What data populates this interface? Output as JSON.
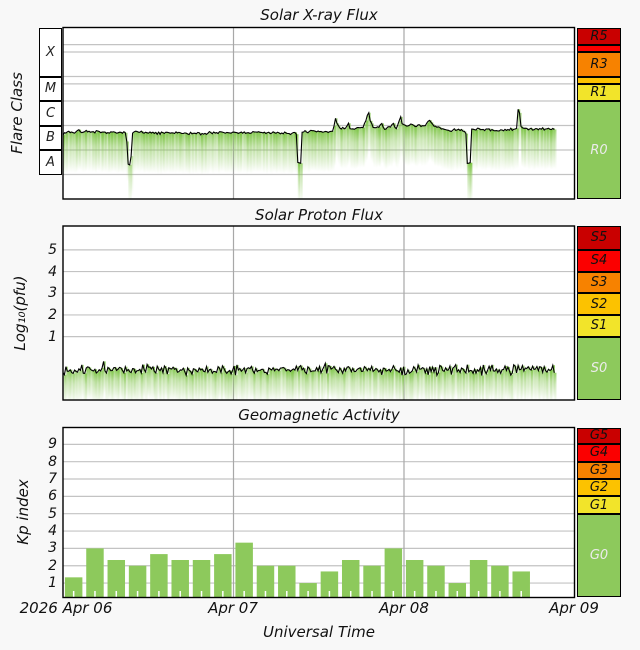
{
  "app": {
    "x_axis_label": "Universal Time",
    "x_tick_labels": [
      "2026 Apr 06",
      "Apr 07",
      "Apr 08",
      "Apr 09"
    ],
    "background": "#f8f8f8"
  },
  "colors": {
    "green": "#8dc95c",
    "level1": "#f2e42a",
    "level2": "#fcc200",
    "level3": "#f78200",
    "level4": "#fb0000",
    "level5": "#c90000",
    "label_light": "#ebebeb",
    "label_dark": "#111111",
    "grid": "#c3c3c3",
    "dayline": "#a8a8a8",
    "plot_bg": "#ffffff",
    "line": "#000000"
  },
  "chart_data": [
    {
      "type": "area",
      "title": "Solar X-ray Flux",
      "ylabel": "Flare Class",
      "y_axis": "log10 flux, decades from -9 (bottom) to -2 (top)",
      "ylim": [
        -9,
        -2
      ],
      "x_range_days": 3,
      "class_boxes": [
        {
          "label": "X",
          "from": -4,
          "to": -2
        },
        {
          "label": "M",
          "from": -5,
          "to": -4
        },
        {
          "label": "C",
          "from": -6,
          "to": -5
        },
        {
          "label": "B",
          "from": -7,
          "to": -6
        },
        {
          "label": "A",
          "from": -8,
          "to": -7
        }
      ],
      "grid_levels": [
        -2.7,
        -3,
        -4,
        -4.3,
        -5,
        -6,
        -7,
        -8
      ],
      "series": [
        {
          "name": "xray_flux_log10",
          "noise": 0.035,
          "end_t": 2.888,
          "points": [
            [
              0,
              -6.33
            ],
            [
              0.03,
              -6.25
            ],
            [
              0.06,
              -6.3
            ],
            [
              0.09,
              -6.2
            ],
            [
              0.11,
              -6.28
            ],
            [
              0.14,
              -6.22
            ],
            [
              0.17,
              -6.3
            ],
            [
              0.2,
              -6.26
            ],
            [
              0.24,
              -6.3
            ],
            [
              0.28,
              -6.28
            ],
            [
              0.32,
              -6.3
            ],
            [
              0.36,
              -6.3
            ],
            [
              0.372,
              -6.3
            ],
            [
              0.38,
              -7.55
            ],
            [
              0.398,
              -7.55
            ],
            [
              0.406,
              -6.28
            ],
            [
              0.44,
              -6.26
            ],
            [
              0.5,
              -6.3
            ],
            [
              0.56,
              -6.32
            ],
            [
              0.62,
              -6.3
            ],
            [
              0.68,
              -6.32
            ],
            [
              0.74,
              -6.31
            ],
            [
              0.8,
              -6.33
            ],
            [
              0.86,
              -6.31
            ],
            [
              0.92,
              -6.3
            ],
            [
              0.98,
              -6.29
            ],
            [
              1.04,
              -6.3
            ],
            [
              1.1,
              -6.28
            ],
            [
              1.16,
              -6.3
            ],
            [
              1.22,
              -6.29
            ],
            [
              1.28,
              -6.3
            ],
            [
              1.34,
              -6.3
            ],
            [
              1.368,
              -6.3
            ],
            [
              1.376,
              -7.55
            ],
            [
              1.394,
              -7.55
            ],
            [
              1.402,
              -6.26
            ],
            [
              1.44,
              -6.23
            ],
            [
              1.5,
              -6.26
            ],
            [
              1.55,
              -6.28
            ],
            [
              1.585,
              -6.22
            ],
            [
              1.597,
              -5.68
            ],
            [
              1.607,
              -5.92
            ],
            [
              1.625,
              -6.12
            ],
            [
              1.655,
              -6.12
            ],
            [
              1.672,
              -5.9
            ],
            [
              1.684,
              -6.14
            ],
            [
              1.72,
              -6.12
            ],
            [
              1.76,
              -6.08
            ],
            [
              1.783,
              -5.7
            ],
            [
              1.79,
              -5.26
            ],
            [
              1.798,
              -5.75
            ],
            [
              1.815,
              -6.05
            ],
            [
              1.85,
              -6.1
            ],
            [
              1.868,
              -5.95
            ],
            [
              1.885,
              -6.1
            ],
            [
              1.92,
              -6.06
            ],
            [
              1.938,
              -5.97
            ],
            [
              1.955,
              -6.1
            ],
            [
              1.982,
              -5.68
            ],
            [
              1.995,
              -6.02
            ],
            [
              2.03,
              -5.96
            ],
            [
              2.06,
              -6.02
            ],
            [
              2.09,
              -5.96
            ],
            [
              2.12,
              -6.04
            ],
            [
              2.148,
              -5.78
            ],
            [
              2.17,
              -6.0
            ],
            [
              2.21,
              -6.1
            ],
            [
              2.26,
              -6.2
            ],
            [
              2.31,
              -6.18
            ],
            [
              2.35,
              -6.2
            ],
            [
              2.362,
              -6.2
            ],
            [
              2.37,
              -7.55
            ],
            [
              2.388,
              -7.55
            ],
            [
              2.396,
              -6.18
            ],
            [
              2.44,
              -6.16
            ],
            [
              2.5,
              -6.18
            ],
            [
              2.56,
              -6.2
            ],
            [
              2.62,
              -6.18
            ],
            [
              2.66,
              -6.14
            ],
            [
              2.672,
              -5.06
            ],
            [
              2.684,
              -6.05
            ],
            [
              2.73,
              -6.14
            ],
            [
              2.78,
              -6.17
            ],
            [
              2.83,
              -6.15
            ],
            [
              2.888,
              -6.13
            ]
          ]
        }
      ],
      "scale": {
        "levels": [
          {
            "label": "R5",
            "from": -2.7,
            "to": -2,
            "color_key": "level5",
            "show_label": true,
            "text": "dark"
          },
          {
            "label": "R4",
            "from": -3,
            "to": -2.7,
            "color_key": "level4",
            "show_label": false,
            "text": "dark"
          },
          {
            "label": "R3",
            "from": -4,
            "to": -3,
            "color_key": "level3",
            "show_label": true,
            "text": "dark"
          },
          {
            "label": "R2",
            "from": -4.3,
            "to": -4,
            "color_key": "level2",
            "show_label": false,
            "text": "dark"
          },
          {
            "label": "R1",
            "from": -5,
            "to": -4.3,
            "color_key": "level1",
            "show_label": true,
            "text": "dark"
          },
          {
            "label": "R0",
            "from": -9,
            "to": -5,
            "color_key": "green",
            "show_label": true,
            "text": "light"
          }
        ]
      }
    },
    {
      "type": "area",
      "title": "Solar Proton Flux",
      "ylabel": "Log₁₀(pfu)",
      "ylim": [
        -1.92,
        6.1
      ],
      "y_ticks": [
        1,
        2,
        3,
        4,
        5
      ],
      "x_range_days": 3,
      "series": [
        {
          "name": "proton_flux_log10",
          "noise": 0.13,
          "end_t": 2.888,
          "points": [
            [
              0,
              -0.52
            ],
            [
              0.25,
              -0.55
            ],
            [
              0.5,
              -0.5
            ],
            [
              0.75,
              -0.55
            ],
            [
              1.0,
              -0.53
            ],
            [
              1.25,
              -0.55
            ],
            [
              1.5,
              -0.52
            ],
            [
              1.75,
              -0.5
            ],
            [
              2.0,
              -0.54
            ],
            [
              2.25,
              -0.52
            ],
            [
              2.5,
              -0.55
            ],
            [
              2.7,
              -0.52
            ],
            [
              2.888,
              -0.53
            ]
          ]
        }
      ],
      "scale": {
        "levels": [
          {
            "label": "S5",
            "from": 5,
            "to": 6.1,
            "color_key": "level5",
            "show_label": true,
            "text": "dark"
          },
          {
            "label": "S4",
            "from": 4,
            "to": 5,
            "color_key": "level4",
            "show_label": true,
            "text": "dark"
          },
          {
            "label": "S3",
            "from": 3,
            "to": 4,
            "color_key": "level3",
            "show_label": true,
            "text": "dark"
          },
          {
            "label": "S2",
            "from": 2,
            "to": 3,
            "color_key": "level2",
            "show_label": true,
            "text": "dark"
          },
          {
            "label": "S1",
            "from": 1,
            "to": 2,
            "color_key": "level1",
            "show_label": true,
            "text": "dark"
          },
          {
            "label": "S0",
            "from": -1.92,
            "to": 1,
            "color_key": "green",
            "show_label": true,
            "text": "light"
          }
        ]
      }
    },
    {
      "type": "bar",
      "title": "Geomagnetic Activity",
      "ylabel": "Kp index",
      "ylim": [
        0,
        9.97
      ],
      "y_ticks": [
        1,
        2,
        3,
        4,
        5,
        6,
        7,
        8,
        9
      ],
      "x_range_days": 3,
      "bar_hours": 3,
      "days": [
        {
          "date": "Apr 06",
          "kp": [
            1.33,
            3.0,
            2.33,
            2.0,
            2.67,
            2.33,
            2.33,
            2.67
          ]
        },
        {
          "date": "Apr 07",
          "kp": [
            3.33,
            2.0,
            2.0,
            1.0,
            1.67,
            2.33,
            2.0,
            3.0
          ]
        },
        {
          "date": "Apr 08",
          "kp": [
            2.33,
            2.0,
            1.0,
            2.33,
            2.0,
            1.67
          ]
        }
      ],
      "scale": {
        "levels": [
          {
            "label": "G5",
            "from": 9,
            "to": 9.97,
            "color_key": "level5",
            "show_label": true,
            "text": "dark"
          },
          {
            "label": "G4",
            "from": 8,
            "to": 9,
            "color_key": "level4",
            "show_label": true,
            "text": "dark"
          },
          {
            "label": "G3",
            "from": 7,
            "to": 8,
            "color_key": "level3",
            "show_label": true,
            "text": "dark"
          },
          {
            "label": "G2",
            "from": 6,
            "to": 7,
            "color_key": "level2",
            "show_label": true,
            "text": "dark"
          },
          {
            "label": "G1",
            "from": 5,
            "to": 6,
            "color_key": "level1",
            "show_label": true,
            "text": "dark"
          },
          {
            "label": "G0",
            "from": 0,
            "to": 5,
            "color_key": "green",
            "show_label": true,
            "text": "light"
          }
        ]
      }
    }
  ]
}
